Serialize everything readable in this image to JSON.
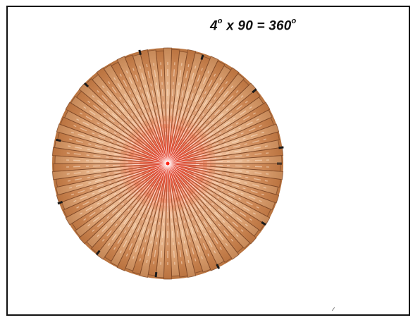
{
  "equation": {
    "factor_a": "4",
    "factor_a_unit": "o",
    "times": "x 90 =",
    "result": "360",
    "result_unit": "o"
  },
  "diagram": {
    "segment_count": 90,
    "segment_angle_deg": 4,
    "colors": {
      "outer": "#c98a52",
      "mid": "#e8b98e",
      "light": "#f5dcc4",
      "center": "#f0553a",
      "line": "#7a4424",
      "tip": "#1a1a1a",
      "ray": "#ffffff"
    }
  }
}
